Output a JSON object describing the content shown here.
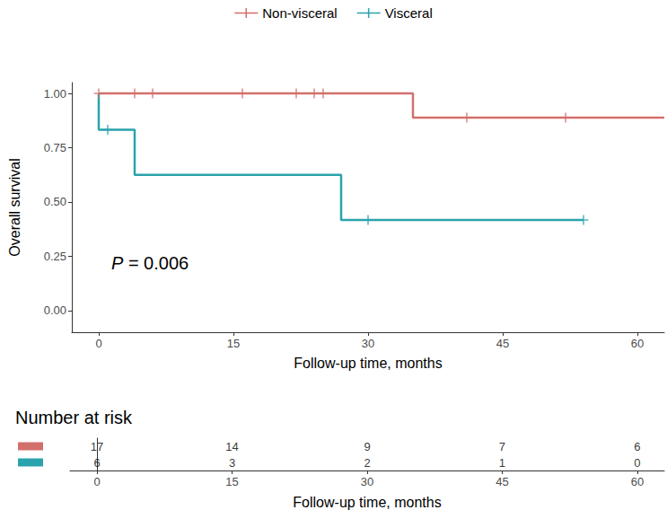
{
  "chart_data": {
    "type": "step",
    "xlabel": "Follow-up time, months",
    "ylabel": "Overall survival",
    "xlim": [
      -3,
      63
    ],
    "xticks": [
      0,
      15,
      30,
      45,
      60
    ],
    "ylim": [
      -0.1,
      1.05
    ],
    "yticks": [
      {
        "value": 0,
        "label": "0.00"
      },
      {
        "value": 0.25,
        "label": "0.25"
      },
      {
        "value": 0.5,
        "label": "0.50"
      },
      {
        "value": 0.75,
        "label": "0.75"
      },
      {
        "value": 1,
        "label": "1.00"
      }
    ],
    "grid": false,
    "legend": "top",
    "marker": "+",
    "annotations": [
      "P = 0.006"
    ],
    "series": [
      {
        "name": "Non-visceral",
        "color": "#D2706B",
        "x": [
          0,
          35,
          63
        ],
        "values": [
          1,
          0.889,
          0.889
        ],
        "censored_x": [
          0,
          4,
          6,
          16,
          22,
          24,
          25,
          41,
          52
        ],
        "censored_values": [
          1,
          1,
          1,
          1,
          1,
          1,
          1,
          0.889,
          0.889
        ]
      },
      {
        "name": "Visceral",
        "color": "#2BA3AC",
        "x": [
          0,
          0,
          4,
          27,
          54
        ],
        "values": [
          1,
          0.833,
          0.625,
          0.417,
          0.417
        ],
        "censored_x": [
          1,
          30,
          54
        ],
        "censored_values": [
          0.833,
          0.417,
          0.417
        ]
      }
    ],
    "risk_table": {
      "title": "Number at risk",
      "times": [
        0,
        15,
        30,
        45,
        60
      ],
      "counts": [
        [
          17,
          14,
          9,
          7,
          6
        ],
        [
          6,
          3,
          2,
          1,
          0
        ]
      ]
    }
  }
}
